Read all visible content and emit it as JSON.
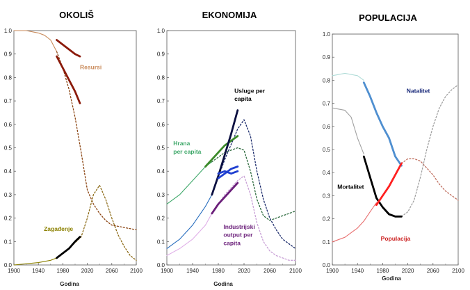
{
  "chart_data": [
    {
      "type": "line",
      "title": "OKOLIŠ",
      "xlabel": "Godina",
      "xlim": [
        1900,
        2100
      ],
      "ylim": [
        0,
        1.0
      ],
      "xticks": [
        1900,
        1940,
        1980,
        2020,
        2060,
        2100
      ],
      "yticks": [
        0,
        0.1,
        0.2,
        0.3,
        0.4,
        0.5,
        0.6,
        0.7,
        0.8,
        0.9,
        1.0
      ],
      "series": [
        {
          "name": "Resursi",
          "color": "#c98a5a",
          "style": "solid",
          "x": [
            1900,
            1920,
            1940,
            1950,
            1960,
            1970
          ],
          "y": [
            1.0,
            1.0,
            0.99,
            0.98,
            0.96,
            0.91
          ]
        },
        {
          "name": "Resursi",
          "color": "#8b4513",
          "style": "dotted",
          "x": [
            1970,
            1980,
            1990,
            2000,
            2010,
            2020,
            2030,
            2040,
            2050,
            2060,
            2080,
            2100
          ],
          "y": [
            0.91,
            0.84,
            0.75,
            0.63,
            0.48,
            0.32,
            0.26,
            0.22,
            0.19,
            0.17,
            0.16,
            0.15
          ]
        },
        {
          "name": "Resursi",
          "color": "#8b1a0a",
          "style": "thick",
          "x": [
            1970,
            1980,
            1990,
            2000,
            2008
          ],
          "y": [
            0.96,
            0.94,
            0.92,
            0.9,
            0.89
          ]
        },
        {
          "name": "Resursi",
          "color": "#8b1a0a",
          "style": "thick",
          "x": [
            1970,
            1980,
            1990,
            2000,
            2008
          ],
          "y": [
            0.89,
            0.84,
            0.79,
            0.74,
            0.69
          ]
        },
        {
          "name": "Zagađenje",
          "color": "#8b8000",
          "style": "solid",
          "x": [
            1900,
            1920,
            1940,
            1950,
            1960,
            1970
          ],
          "y": [
            0.0,
            0.005,
            0.01,
            0.015,
            0.02,
            0.03
          ]
        },
        {
          "name": "Zagađenje",
          "color": "#8b6914",
          "style": "dotted",
          "x": [
            1970,
            1990,
            2010,
            2020,
            2030,
            2040,
            2050,
            2060,
            2070,
            2080,
            2090,
            2100
          ],
          "y": [
            0.03,
            0.07,
            0.12,
            0.2,
            0.3,
            0.34,
            0.28,
            0.2,
            0.13,
            0.08,
            0.04,
            0.02
          ]
        },
        {
          "name": "Zagađenje",
          "color": "#000000",
          "style": "thick",
          "x": [
            1970,
            1980,
            1990,
            2000,
            2008
          ],
          "y": [
            0.03,
            0.05,
            0.07,
            0.1,
            0.12
          ]
        }
      ],
      "labels": [
        {
          "text": "Resursi",
          "x": 2008,
          "y": 0.835,
          "color": "#c98a5a"
        },
        {
          "text": "Zagađenje",
          "x": 1949,
          "y": 0.145,
          "color": "#8b8000"
        }
      ]
    },
    {
      "type": "line",
      "title": "EKONOMIJA",
      "xlabel": "Godina",
      "xlim": [
        1900,
        2100
      ],
      "ylim": [
        0,
        1.0
      ],
      "xticks": [
        1900,
        1940,
        1980,
        2020,
        2060,
        2100
      ],
      "yticks": [
        0,
        0.1,
        0.2,
        0.3,
        0.4,
        0.5,
        0.6,
        0.7,
        0.8,
        0.9,
        1.0
      ],
      "series": [
        {
          "name": "Hrana per capita",
          "color": "#3fa86a",
          "style": "solid",
          "x": [
            1900,
            1920,
            1940,
            1960,
            1970
          ],
          "y": [
            0.26,
            0.3,
            0.36,
            0.42,
            0.44
          ]
        },
        {
          "name": "Hrana per capita",
          "color": "#2e6b3f",
          "style": "dotted",
          "x": [
            1970,
            1990,
            2010,
            2020,
            2030,
            2040,
            2050,
            2060,
            2070,
            2080,
            2090,
            2100
          ],
          "y": [
            0.44,
            0.48,
            0.5,
            0.49,
            0.4,
            0.28,
            0.21,
            0.19,
            0.2,
            0.21,
            0.22,
            0.23
          ]
        },
        {
          "name": "Hrana per capita",
          "color": "#3c8a2a",
          "style": "thick",
          "x": [
            1960,
            1970,
            1980,
            1990,
            2000,
            2010
          ],
          "y": [
            0.42,
            0.45,
            0.48,
            0.51,
            0.53,
            0.55
          ]
        },
        {
          "name": "Usluge per capita",
          "color": "#2a6fbf",
          "style": "solid",
          "x": [
            1900,
            1920,
            1940,
            1960,
            1970
          ],
          "y": [
            0.07,
            0.11,
            0.17,
            0.25,
            0.3
          ]
        },
        {
          "name": "Usluge per capita",
          "color": "#1a2a6b",
          "style": "dotted",
          "x": [
            1970,
            1990,
            2010,
            2020,
            2030,
            2040,
            2050,
            2060,
            2070,
            2080,
            2090,
            2100
          ],
          "y": [
            0.3,
            0.45,
            0.58,
            0.62,
            0.55,
            0.4,
            0.28,
            0.2,
            0.15,
            0.11,
            0.09,
            0.07
          ]
        },
        {
          "name": "Usluge per capita",
          "color": "#0a0f40",
          "style": "thick",
          "x": [
            1970,
            1980,
            1990,
            2000,
            2010
          ],
          "y": [
            0.3,
            0.38,
            0.47,
            0.56,
            0.66
          ]
        },
        {
          "name": "Usluge per capita",
          "color": "#1f3fd0",
          "style": "thick",
          "x": [
            1980,
            1990,
            2000,
            2010
          ],
          "y": [
            0.37,
            0.39,
            0.41,
            0.42
          ]
        },
        {
          "name": "Usluge per capita",
          "color": "#1f3fd0",
          "style": "thick",
          "x": [
            1980,
            1990,
            2000,
            2010
          ],
          "y": [
            0.39,
            0.4,
            0.39,
            0.4
          ]
        },
        {
          "name": "Industrijski output per capita",
          "color": "#e0b0e8",
          "style": "solid",
          "x": [
            1900,
            1920,
            1940,
            1960,
            1970
          ],
          "y": [
            0.04,
            0.07,
            0.11,
            0.17,
            0.22
          ]
        },
        {
          "name": "Industrijski output per capita",
          "color": "#c9a0d6",
          "style": "dotted",
          "x": [
            1970,
            1990,
            2010,
            2020,
            2030,
            2040,
            2050,
            2060,
            2070,
            2080,
            2090,
            2100
          ],
          "y": [
            0.22,
            0.3,
            0.36,
            0.38,
            0.3,
            0.18,
            0.1,
            0.06,
            0.04,
            0.03,
            0.02,
            0.02
          ]
        },
        {
          "name": "Industrijski output per capita",
          "color": "#6b1f7a",
          "style": "thick",
          "x": [
            1970,
            1980,
            1990,
            2000,
            2010
          ],
          "y": [
            0.22,
            0.26,
            0.29,
            0.32,
            0.35
          ]
        }
      ],
      "labels": [
        {
          "text": "Usluge per",
          "x": 2005,
          "y": 0.735,
          "color": "#000000"
        },
        {
          "text": "capita",
          "x": 2005,
          "y": 0.7,
          "color": "#000000"
        },
        {
          "text": "Hrana",
          "x": 1910,
          "y": 0.51,
          "color": "#3fa86a"
        },
        {
          "text": "per capita",
          "x": 1910,
          "y": 0.475,
          "color": "#3fa86a"
        },
        {
          "text": "Industrijski",
          "x": 1988,
          "y": 0.155,
          "color": "#6b1f7a"
        },
        {
          "text": "output per",
          "x": 1988,
          "y": 0.12,
          "color": "#6b1f7a"
        },
        {
          "text": "capita",
          "x": 1988,
          "y": 0.085,
          "color": "#6b1f7a"
        }
      ]
    },
    {
      "type": "line",
      "title": "POPULACIJA",
      "xlabel": "Godina",
      "xlim": [
        1900,
        2100
      ],
      "ylim": [
        0,
        1.0
      ],
      "xticks": [
        1900,
        1940,
        1980,
        2020,
        2060,
        2100
      ],
      "yticks": [
        0,
        0.1,
        0.2,
        0.3,
        0.4,
        0.5,
        0.6,
        0.7,
        0.8,
        0.9,
        1.0
      ],
      "series": [
        {
          "name": "Natalitet",
          "color": "#b0dcd8",
          "style": "solid",
          "x": [
            1900,
            1920,
            1940,
            1950
          ],
          "y": [
            0.82,
            0.83,
            0.82,
            0.8
          ]
        },
        {
          "name": "Natalitet",
          "color": "#4f8fd0",
          "style": "thick",
          "x": [
            1950,
            1960,
            1970,
            1980,
            1990,
            2000,
            2010
          ],
          "y": [
            0.79,
            0.73,
            0.66,
            0.6,
            0.55,
            0.47,
            0.43
          ]
        },
        {
          "name": "Mortalitet",
          "color": "#a0a0a0",
          "style": "solid",
          "x": [
            1900,
            1920,
            1930,
            1940,
            1950
          ],
          "y": [
            0.68,
            0.67,
            0.64,
            0.55,
            0.48
          ]
        },
        {
          "name": "Mortalitet",
          "color": "#000000",
          "style": "thick",
          "x": [
            1950,
            1960,
            1970,
            1980,
            1990,
            2000,
            2010
          ],
          "y": [
            0.47,
            0.38,
            0.29,
            0.25,
            0.22,
            0.21,
            0.21
          ]
        },
        {
          "name": "Populacija",
          "color": "#e87070",
          "style": "solid",
          "x": [
            1900,
            1920,
            1940,
            1950,
            1960,
            1970
          ],
          "y": [
            0.1,
            0.12,
            0.16,
            0.19,
            0.23,
            0.27
          ]
        },
        {
          "name": "Populacija",
          "color": "#ff2020",
          "style": "thick",
          "x": [
            1970,
            1980,
            1990,
            2000,
            2010
          ],
          "y": [
            0.26,
            0.3,
            0.34,
            0.39,
            0.44
          ]
        },
        {
          "name": "Populacija",
          "color": "#c07060",
          "style": "dotted",
          "x": [
            2010,
            2020,
            2030,
            2040,
            2050,
            2060,
            2070,
            2080,
            2090,
            2100
          ],
          "y": [
            0.44,
            0.46,
            0.46,
            0.45,
            0.42,
            0.39,
            0.35,
            0.32,
            0.3,
            0.28
          ]
        },
        {
          "name": "Mortalitet",
          "color": "#a0a0a0",
          "style": "dotted",
          "x": [
            2010,
            2020,
            2030,
            2040,
            2050,
            2060,
            2070,
            2080,
            2090,
            2100
          ],
          "y": [
            0.21,
            0.23,
            0.28,
            0.38,
            0.5,
            0.6,
            0.68,
            0.73,
            0.76,
            0.78
          ]
        }
      ],
      "labels": [
        {
          "text": "Natalitet",
          "x": 2018,
          "y": 0.745,
          "color": "#1a2a7a"
        },
        {
          "text": "Mortalitet",
          "x": 1908,
          "y": 0.33,
          "color": "#000000"
        },
        {
          "text": "Populacija",
          "x": 1977,
          "y": 0.105,
          "color": "#cc2222"
        }
      ]
    }
  ]
}
